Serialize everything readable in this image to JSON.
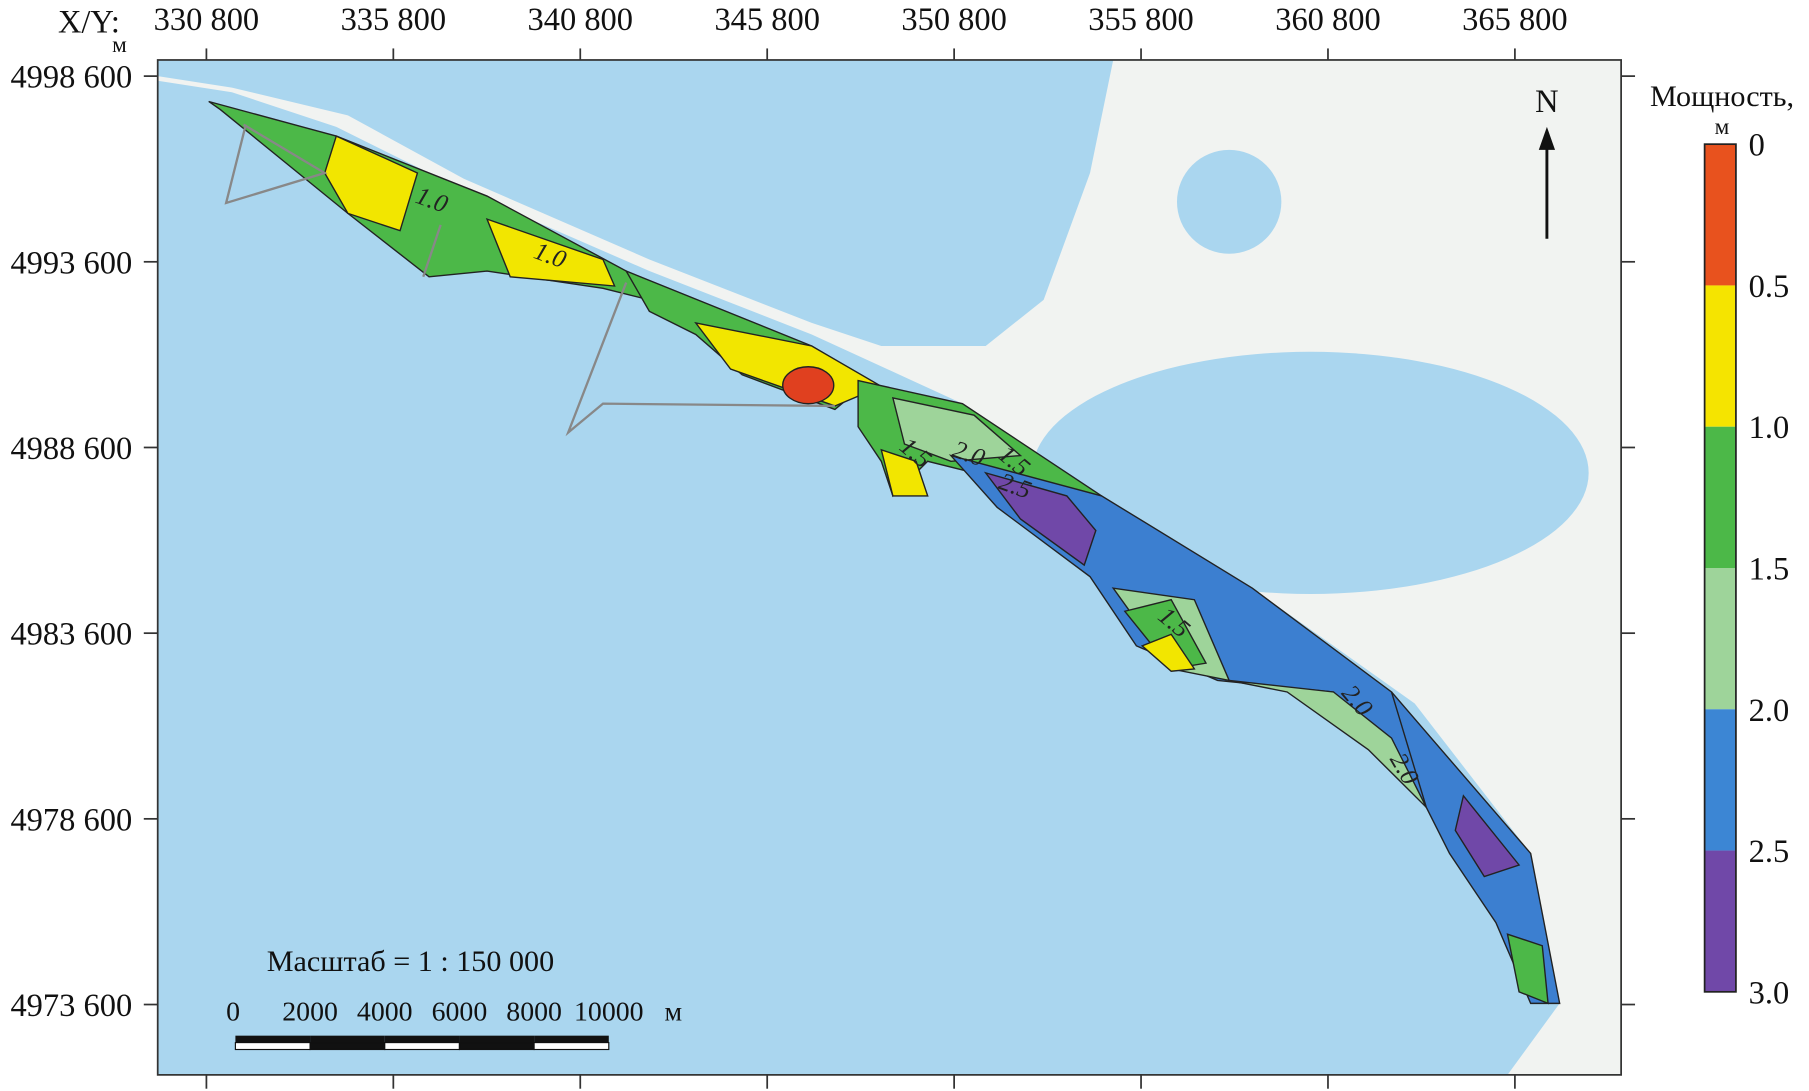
{
  "axes": {
    "corner_label": "X/Y:",
    "corner_unit": "м",
    "x_ticks": [
      "330 800",
      "335 800",
      "340 800",
      "345 800",
      "350 800",
      "355 800",
      "360 800",
      "365 800"
    ],
    "y_ticks": [
      "4998 600",
      "4993 600",
      "4988 600",
      "4983 600",
      "4978 600",
      "4973 600"
    ]
  },
  "north_arrow": "N",
  "legend": {
    "title": "Мощность,",
    "unit": "м",
    "ticks": [
      "0",
      "0.5",
      "1.0",
      "1.5",
      "2.0",
      "2.5",
      "3.0"
    ]
  },
  "scale": {
    "title": "Масштаб = 1 : 150 000",
    "labels": [
      "0",
      "2000",
      "4000",
      "6000",
      "8000",
      "10000"
    ],
    "unit": "м"
  },
  "contour_labels": [
    "1.0",
    "1.0",
    "1.5",
    "2.0",
    "1.5",
    "2.5",
    "1.5",
    "2.0",
    "2.0"
  ]
}
